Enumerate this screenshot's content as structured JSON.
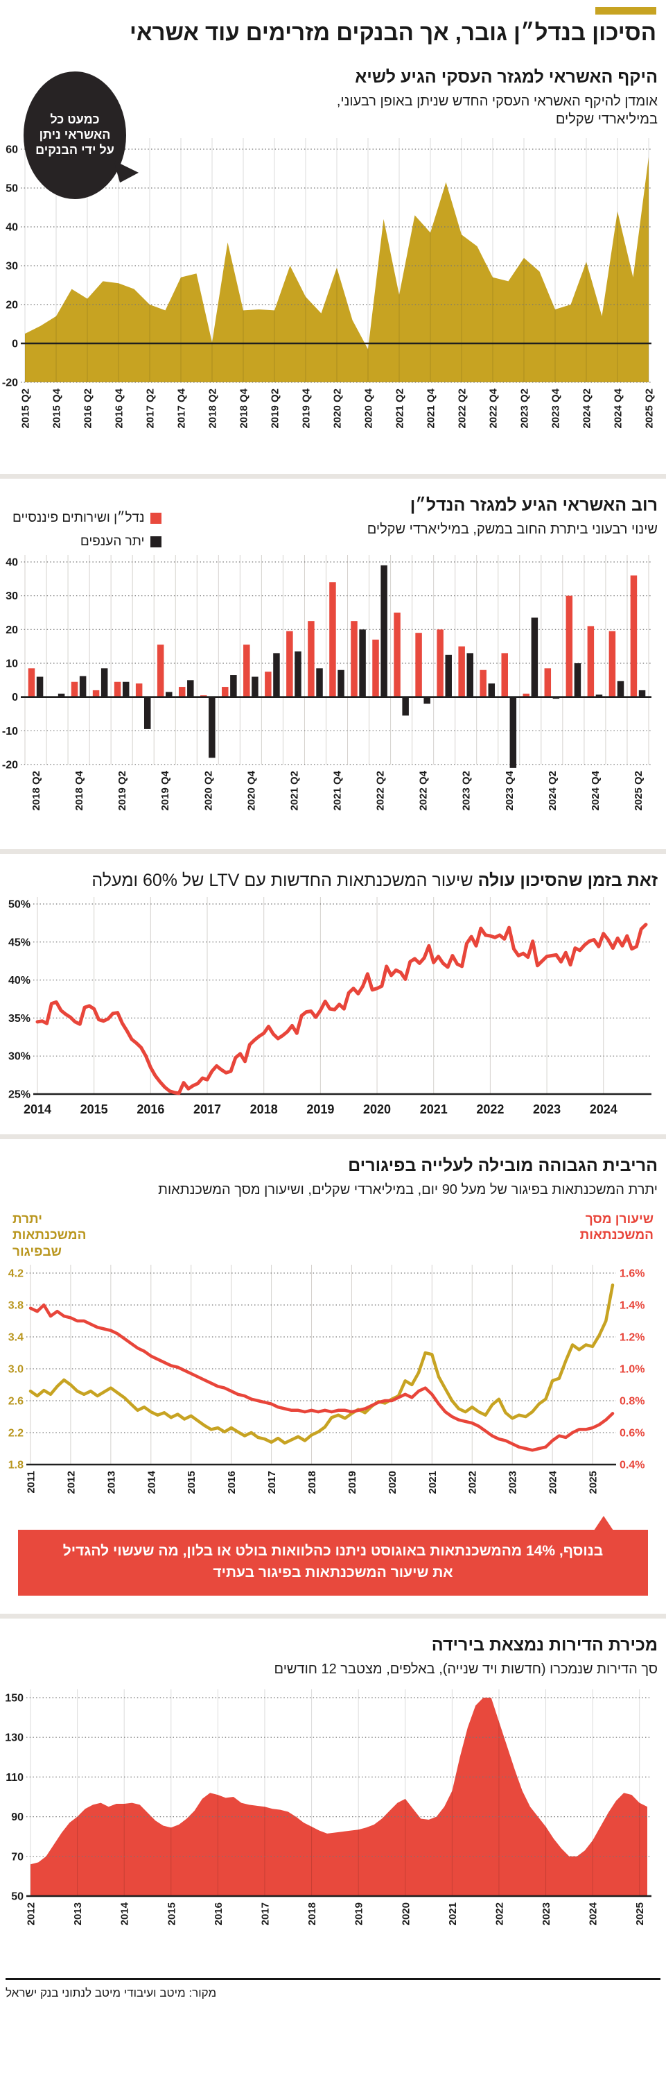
{
  "header": {
    "title": "הסיכון בנדל״ן גובר, אך הבנקים מזרימים עוד אשראי"
  },
  "footer": {
    "source": "מקור: מיטב ועיבודי מיטב לנתוני בנק ישראל"
  },
  "colors": {
    "gold": "#c7a322",
    "red": "#e8493d",
    "black": "#231f20",
    "divider": "#e8e5e1"
  },
  "chart_data": [
    {
      "id": "business-credit",
      "type": "area",
      "title": "היקף האשראי למגזר העסקי הגיע לשיא",
      "subtitle": "אומדן להיקף האשראי העסקי החדש שניתן באופן רבעוני, במיליארדי שקלים",
      "annotation": "כמעט כל האשראי ניתן על ידי הבנקים",
      "color": "#c7a322",
      "ylim": [
        -20,
        60
      ],
      "y_ticks": [
        60,
        50,
        40,
        30,
        20,
        0,
        -20
      ],
      "baseline": 0,
      "x_label_step": 2,
      "x_labels": [
        "2015 Q2",
        "2015 Q4",
        "2016 Q2",
        "2016 Q4",
        "2017 Q2",
        "2017 Q4",
        "2018 Q2",
        "2018 Q4",
        "2019 Q2",
        "2019 Q4",
        "2020 Q2",
        "2020 Q4",
        "2021 Q2",
        "2021 Q4",
        "2022 Q2",
        "2022 Q4",
        "2023 Q2",
        "2023 Q4",
        "2024 Q2",
        "2024 Q4",
        "2025 Q2"
      ],
      "values": [
        5,
        9,
        14,
        24,
        21.5,
        26,
        25.5,
        24,
        20,
        17,
        27,
        28,
        0.5,
        36,
        17,
        17.5,
        17,
        30,
        22,
        15.5,
        29.5,
        12,
        -3,
        42,
        22.5,
        43,
        38.5,
        51.5,
        38,
        35,
        27,
        26,
        32,
        28.5,
        17.5,
        20,
        31,
        14,
        44,
        27,
        58
      ]
    },
    {
      "id": "credit-by-sector",
      "type": "bar",
      "title": "רוב האשראי הגיע למגזר הנדל״ן",
      "subtitle": "שינוי רבעוני ביתרת החוב במשק, במיליארדי שקלים",
      "legend": [
        {
          "label": "נדל״ן ושירותים פיננסיים",
          "color": "#e8493d"
        },
        {
          "label": "יתר הענפים",
          "color": "#231f20"
        }
      ],
      "ylim": [
        -20,
        40
      ],
      "y_ticks": [
        40,
        30,
        20,
        10,
        0,
        -10,
        -20
      ],
      "baseline": 0,
      "x_label_step": 2,
      "x_labels": [
        "2018 Q2",
        "2018 Q4",
        "2019 Q2",
        "2019 Q4",
        "2020 Q2",
        "2020 Q4",
        "2021 Q2",
        "2021 Q4",
        "2022 Q2",
        "2022 Q4",
        "2023 Q2",
        "2023 Q4",
        "2024 Q2",
        "2024 Q4",
        "2025 Q2"
      ],
      "series": [
        {
          "name": "נדל״ן ושירותים פיננסיים",
          "color": "#e8493d",
          "values": [
            8.5,
            0,
            4.5,
            2,
            4.5,
            4,
            15.5,
            3,
            0.5,
            3,
            15.5,
            7.5,
            19.5,
            22.5,
            34,
            22.5,
            17,
            25,
            19,
            20,
            15,
            8,
            13,
            1,
            8.5,
            30,
            21,
            19.5,
            36
          ]
        },
        {
          "name": "יתר הענפים",
          "color": "#231f20",
          "values": [
            6,
            1,
            6.2,
            8.5,
            4.5,
            -9.5,
            1.5,
            5,
            -18,
            6.5,
            6,
            13,
            13.5,
            8.5,
            8,
            20,
            39,
            -5.5,
            -2,
            12.5,
            13,
            4,
            -21,
            23.5,
            -0.5,
            10,
            0.7,
            4.7,
            2
          ]
        }
      ]
    },
    {
      "id": "ltv-share",
      "type": "line",
      "title_bold": "זאת בזמן שהסיכון עולה",
      "title_rest": "שיעור המשכנתאות החדשות עם LTV של 60% ומעלה",
      "color": "#e8453a",
      "ylim": [
        25,
        50
      ],
      "y_ticks": [
        50,
        45,
        40,
        35,
        30,
        25
      ],
      "y_suffix": "%",
      "baseline": 25,
      "x_label_step": 12,
      "x_labels": [
        "2014",
        "2015",
        "2016",
        "2017",
        "2018",
        "2019",
        "2020",
        "2021",
        "2022",
        "2023",
        "2024"
      ],
      "values": [
        34.5,
        34.6,
        34.3,
        36.9,
        37.1,
        36.0,
        35.5,
        35.1,
        34.5,
        34.2,
        36.4,
        36.6,
        36.2,
        34.8,
        34.6,
        34.9,
        35.6,
        35.7,
        34.3,
        33.3,
        32.2,
        31.7,
        31.1,
        30.0,
        28.5,
        27.4,
        26.6,
        25.9,
        25.4,
        25.2,
        25.1,
        26.5,
        25.7,
        26.1,
        26.4,
        27.1,
        26.9,
        28.0,
        28.7,
        28.2,
        27.8,
        28.0,
        29.8,
        30.3,
        29.3,
        31.5,
        32.1,
        32.6,
        33.0,
        33.9,
        32.9,
        32.3,
        32.7,
        33.2,
        34.0,
        33.0,
        35.3,
        35.8,
        35.9,
        35.1,
        36.0,
        37.2,
        36.2,
        36.1,
        36.8,
        36.2,
        38.3,
        38.9,
        38.2,
        39.2,
        40.8,
        38.7,
        38.9,
        39.2,
        41.8,
        40.6,
        41.3,
        41.0,
        40.1,
        42.4,
        42.8,
        42.2,
        42.9,
        44.5,
        42.3,
        43.1,
        42.2,
        41.7,
        43.2,
        42.1,
        41.8,
        44.8,
        45.7,
        44.5,
        46.8,
        45.9,
        45.8,
        45.6,
        45.9,
        45.4,
        46.9,
        44.1,
        43.2,
        43.5,
        43.0,
        45.1,
        41.9,
        42.5,
        43.1,
        43.2,
        43.3,
        42.4,
        43.6,
        42.0,
        44.2,
        43.9,
        44.6,
        45.1,
        45.3,
        44.4,
        46.1,
        45.3,
        44.2,
        45.5,
        44.5,
        45.8,
        44.1,
        44.4,
        46.7,
        47.3
      ]
    },
    {
      "id": "arrears",
      "type": "dual-line",
      "title": "הריבית הגבוהה מובילה לעלייה בפיגורים",
      "subtitle": "יתרת המשכנתאות בפיגור של מעל 90 יום, במיליארדי שקלים, ושיעורן מסך המשכנתאות",
      "left_axis_label": "יתרת\nהמשכנתאות\nשבפיגור",
      "right_axis_label": "שיעורן מסך\nהמשכנתאות",
      "y_ticks": [
        4.2,
        3.8,
        3.4,
        3.0,
        2.6,
        2.2,
        1.8
      ],
      "y_tick_labels": [
        "4.2",
        "3.8",
        "3.4",
        "3.0",
        "2.6",
        "2.2",
        "1.8"
      ],
      "y_ticks_right": [
        1.6,
        1.4,
        1.2,
        1.0,
        0.8,
        0.6,
        0.4
      ],
      "y_tick_labels_right": [
        "1.6%",
        "1.4%",
        "1.2%",
        "1.0%",
        "0.8%",
        "0.6%",
        "0.4%"
      ],
      "baseline": 1.8,
      "x_label_step": 6,
      "x_labels": [
        "2011",
        "2012",
        "2013",
        "2014",
        "2015",
        "2016",
        "2017",
        "2018",
        "2019",
        "2020",
        "2021",
        "2022",
        "2023",
        "2024",
        "2025"
      ],
      "series": [
        {
          "name": "יתרת המשכנתאות שבפיגור",
          "axis": "left",
          "color": "#c7a322",
          "values": [
            2.72,
            2.66,
            2.73,
            2.68,
            2.78,
            2.86,
            2.8,
            2.72,
            2.68,
            2.72,
            2.66,
            2.71,
            2.76,
            2.7,
            2.64,
            2.56,
            2.48,
            2.52,
            2.46,
            2.42,
            2.45,
            2.39,
            2.43,
            2.37,
            2.41,
            2.35,
            2.29,
            2.24,
            2.26,
            2.21,
            2.26,
            2.21,
            2.16,
            2.2,
            2.14,
            2.12,
            2.08,
            2.13,
            2.07,
            2.11,
            2.15,
            2.1,
            2.17,
            2.21,
            2.27,
            2.39,
            2.42,
            2.38,
            2.44,
            2.49,
            2.45,
            2.53,
            2.59,
            2.57,
            2.62,
            2.66,
            2.85,
            2.8,
            2.95,
            3.2,
            3.18,
            2.9,
            2.75,
            2.6,
            2.5,
            2.46,
            2.52,
            2.46,
            2.42,
            2.55,
            2.62,
            2.45,
            2.38,
            2.42,
            2.4,
            2.46,
            2.56,
            2.62,
            2.85,
            2.88,
            3.1,
            3.3,
            3.24,
            3.3,
            3.28,
            3.42,
            3.6,
            4.05
          ]
        },
        {
          "name": "שיעורן מסך המשכנתאות",
          "axis": "right",
          "color": "#e8453a",
          "values": [
            1.38,
            1.36,
            1.4,
            1.33,
            1.36,
            1.33,
            1.32,
            1.3,
            1.3,
            1.28,
            1.26,
            1.25,
            1.24,
            1.22,
            1.19,
            1.16,
            1.13,
            1.11,
            1.08,
            1.06,
            1.04,
            1.02,
            1.01,
            0.99,
            0.97,
            0.95,
            0.93,
            0.91,
            0.89,
            0.88,
            0.86,
            0.84,
            0.83,
            0.81,
            0.8,
            0.79,
            0.78,
            0.76,
            0.75,
            0.74,
            0.74,
            0.73,
            0.74,
            0.73,
            0.74,
            0.73,
            0.74,
            0.74,
            0.73,
            0.74,
            0.75,
            0.77,
            0.79,
            0.8,
            0.8,
            0.82,
            0.84,
            0.82,
            0.86,
            0.88,
            0.84,
            0.78,
            0.73,
            0.7,
            0.68,
            0.67,
            0.66,
            0.64,
            0.61,
            0.58,
            0.56,
            0.55,
            0.53,
            0.51,
            0.5,
            0.49,
            0.5,
            0.51,
            0.55,
            0.58,
            0.57,
            0.6,
            0.62,
            0.62,
            0.63,
            0.65,
            0.68,
            0.72
          ]
        }
      ],
      "callout": "בנוסף, 14% מהמשכנתאות באוגוסט ניתנו כהלוואות בולט או בלון, מה שעשוי להגדיל את שיעור המשכנתאות בפיגור בעתיד"
    },
    {
      "id": "home-sales",
      "type": "area",
      "title": "מכירת הדירות נמצאת בירידה",
      "subtitle": "סך הדירות שנמכרו (חדשות ויד שנייה), באלפים, מצטבר 12 חודשים",
      "color": "#e8493d",
      "ylim": [
        50,
        150
      ],
      "y_ticks": [
        150,
        130,
        110,
        90,
        70,
        50
      ],
      "baseline": 50,
      "x_label_step": 6,
      "x_labels": [
        "2012",
        "2013",
        "2014",
        "2015",
        "2016",
        "2017",
        "2018",
        "2019",
        "2020",
        "2021",
        "2022",
        "2023",
        "2024",
        "2025"
      ],
      "values": [
        66,
        67,
        70,
        76,
        82,
        87,
        90,
        94,
        96,
        97,
        95,
        96.5,
        96.5,
        97,
        96,
        92,
        88,
        85.5,
        84.5,
        86,
        89,
        93,
        99,
        102,
        101,
        99.5,
        100,
        97,
        96,
        95.5,
        95,
        94,
        93.5,
        92.5,
        90,
        87,
        85,
        83,
        81.5,
        82,
        82.5,
        83,
        83.5,
        84.5,
        86,
        89,
        93,
        97,
        99,
        94,
        89,
        88.5,
        90,
        95,
        103,
        120,
        135,
        146,
        150,
        150,
        138,
        126,
        114,
        103,
        95,
        90,
        85,
        79,
        74,
        70,
        70,
        73,
        78,
        85,
        92,
        98,
        102,
        101,
        97,
        95
      ]
    }
  ]
}
